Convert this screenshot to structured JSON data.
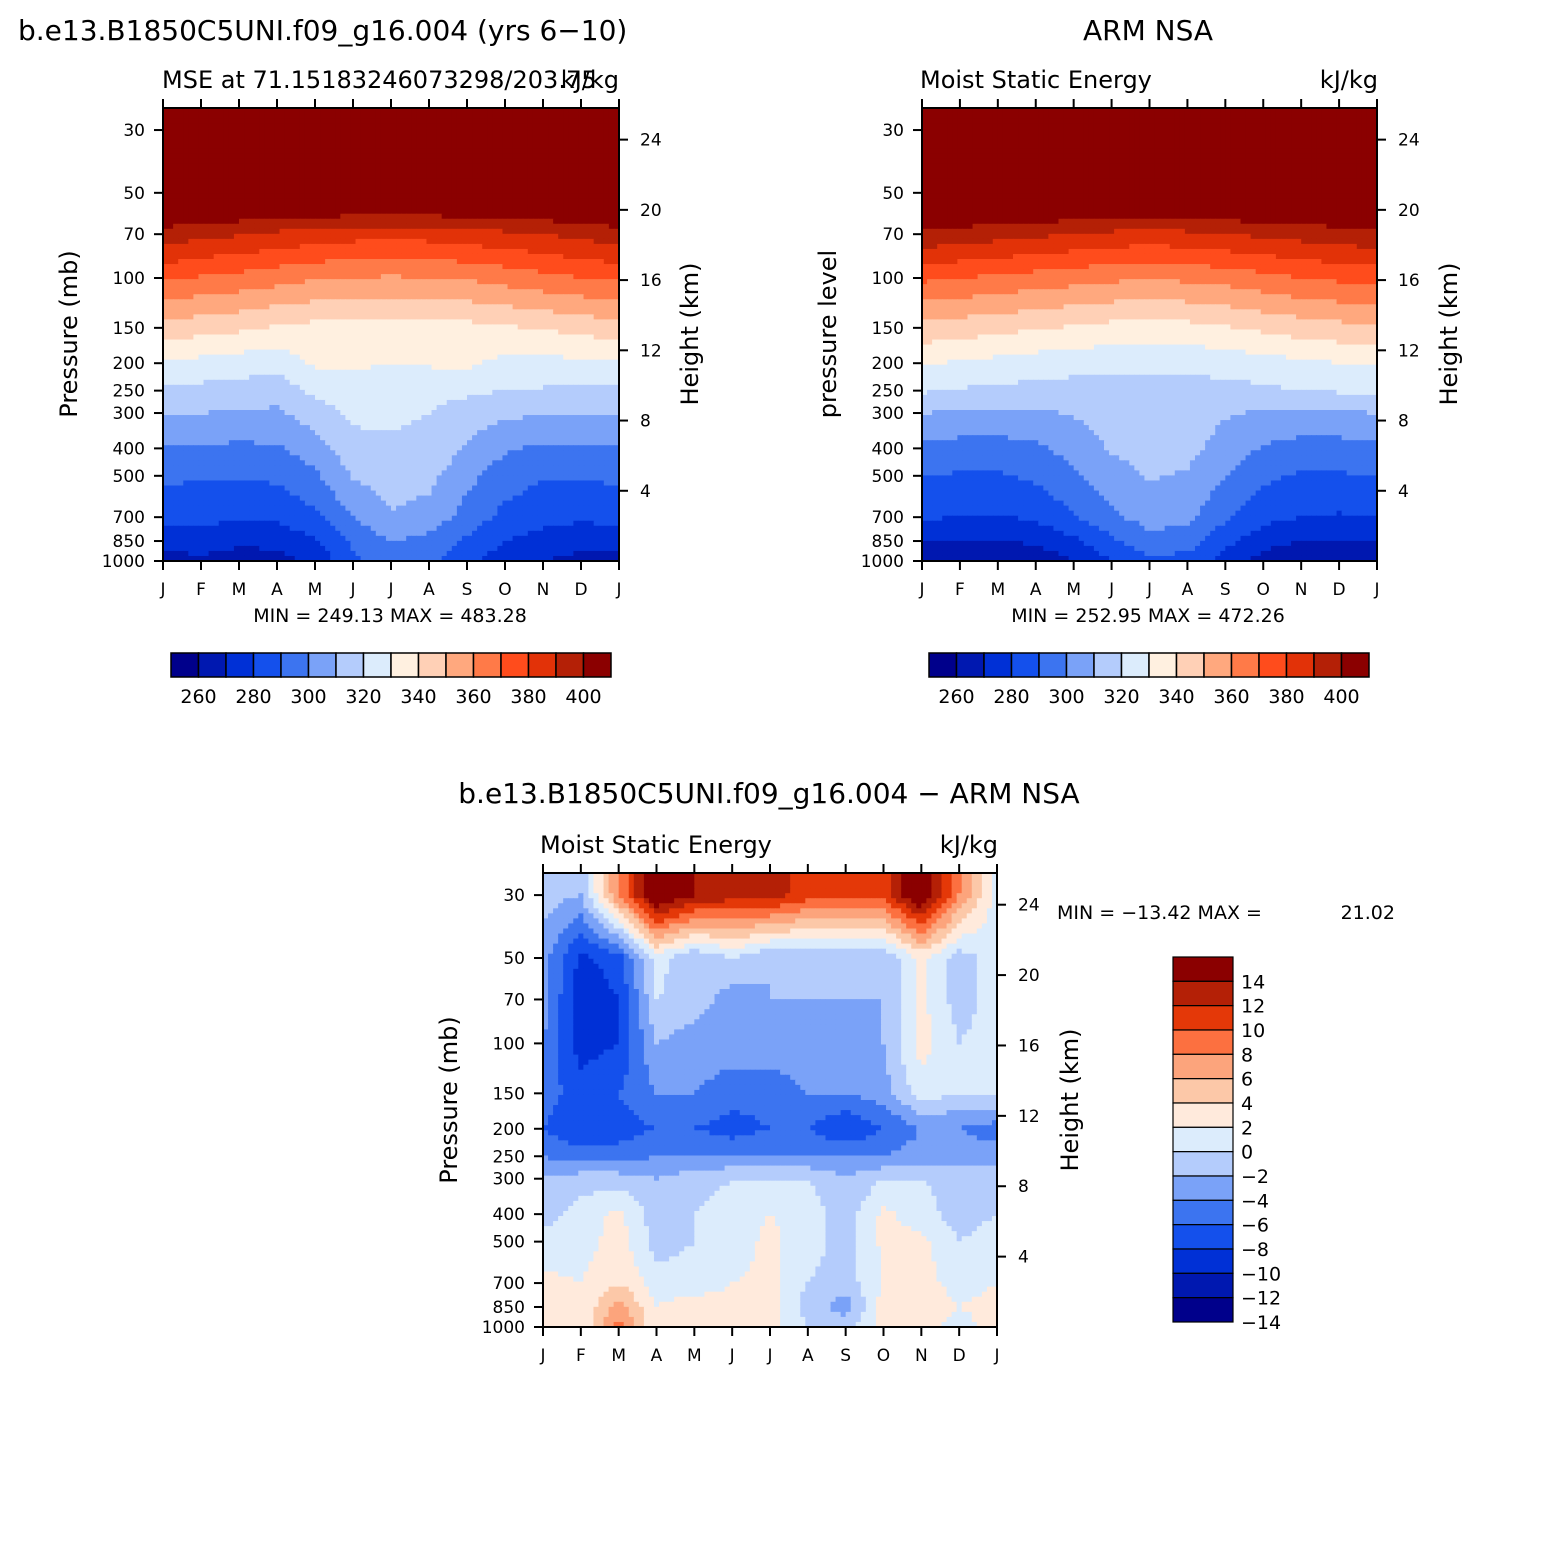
{
  "palette": {
    "mse": [
      "#00008b",
      "#0018b0",
      "#0030d6",
      "#1450ec",
      "#3c74f0",
      "#7aa2f8",
      "#b4ccfc",
      "#dcecfc",
      "#fff0e0",
      "#ffd0b6",
      "#ffa87e",
      "#ff7a48",
      "#ff4c1c",
      "#e23208",
      "#b42006",
      "#8b0000"
    ],
    "diff": [
      "#00008b",
      "#0018b0",
      "#0030d6",
      "#1450ec",
      "#3c74f0",
      "#7aa2f8",
      "#b4ccfc",
      "#dcecfc",
      "#ffeadc",
      "#fcc8a8",
      "#fca47c",
      "#fc7040",
      "#e43808",
      "#b42006",
      "#8b0000"
    ]
  },
  "months": [
    "J",
    "F",
    "M",
    "A",
    "M",
    "J",
    "J",
    "A",
    "S",
    "O",
    "N",
    "D",
    "J"
  ],
  "pressure_ticks": [
    "30",
    "50",
    "70",
    "100",
    "150",
    "200",
    "250",
    "300",
    "400",
    "500",
    "700",
    "850",
    "1000"
  ],
  "height_ticks": [
    "24",
    "20",
    "16",
    "12",
    "8",
    "4"
  ],
  "colorbar_mse": {
    "labels": [
      "260",
      "280",
      "300",
      "320",
      "340",
      "360",
      "380",
      "400"
    ]
  },
  "colorbar_diff": {
    "labels": [
      "14",
      "12",
      "10",
      "8",
      "6",
      "4",
      "2",
      "0",
      "−2",
      "−4",
      "−6",
      "−8",
      "−10",
      "−12",
      "−14"
    ]
  },
  "chart_data": [
    {
      "type": "heatmap",
      "id": "model",
      "title": "b.e13.B1850C5UNI.f09_g16.004 (yrs 6−10)",
      "subtitle_left": "MSE at 71.15183246073298/203.75",
      "subtitle_right": "kJ/kg",
      "ylabel": "Pressure (mb)",
      "ylabel_right": "Height (km)",
      "xlabel": "",
      "stats": "MIN = 249.13 MAX = 483.28",
      "units": "kJ/kg",
      "levels": [
        260,
        270,
        280,
        290,
        300,
        310,
        320,
        330,
        340,
        350,
        360,
        370,
        380,
        390,
        400
      ],
      "x_months": [
        0,
        1,
        2,
        3,
        4,
        5,
        6,
        7,
        8,
        9,
        10,
        11,
        12
      ],
      "pressure_levels_mb": [
        30,
        50,
        70,
        100,
        150,
        200,
        250,
        300,
        400,
        500,
        700,
        850,
        1000
      ],
      "values": [
        [
          420,
          420,
          420,
          420,
          420,
          420,
          420,
          420,
          420,
          420,
          420,
          420,
          420
        ],
        [
          420,
          420,
          420,
          420,
          420,
          420,
          420,
          420,
          420,
          420,
          420,
          420,
          420
        ],
        [
          396,
          393,
          391,
          388,
          386,
          384,
          383,
          384,
          386,
          388,
          390,
          393,
          396
        ],
        [
          372,
          369,
          367,
          364,
          361,
          360,
          359,
          360,
          361,
          364,
          367,
          370,
          372
        ],
        [
          346,
          344,
          342,
          339,
          337,
          336,
          335,
          336,
          337,
          339,
          341,
          343,
          346
        ],
        [
          329,
          327,
          325,
          323,
          332,
          331,
          330,
          331,
          332,
          327,
          327,
          328,
          329
        ],
        [
          318,
          317,
          316,
          315,
          322,
          327,
          326,
          324,
          322,
          320,
          319,
          318,
          318
        ],
        [
          311,
          310,
          309,
          308,
          315,
          322,
          322,
          320,
          315,
          312,
          311,
          311,
          311
        ],
        [
          298,
          299,
          298,
          299,
          305,
          317,
          318,
          317,
          309,
          301,
          298,
          298,
          298
        ],
        [
          292,
          291,
          291,
          292,
          298,
          311,
          315,
          313,
          303,
          295,
          291,
          291,
          292
        ],
        [
          283,
          283,
          281,
          282,
          288,
          300,
          309,
          306,
          296,
          287,
          283,
          282,
          283
        ],
        [
          274,
          275,
          272,
          273,
          278,
          292,
          300,
          297,
          288,
          280,
          276,
          273,
          274
        ],
        [
          266,
          268,
          265,
          266,
          272,
          288,
          295,
          293,
          283,
          274,
          270,
          267,
          266
        ]
      ]
    },
    {
      "type": "heatmap",
      "id": "obs",
      "title": "ARM NSA",
      "subtitle_left": "Moist Static Energy",
      "subtitle_right": "kJ/kg",
      "ylabel": "pressure level",
      "ylabel_right": "Height (km)",
      "xlabel": "",
      "stats": "MIN = 252.95 MAX = 472.26",
      "units": "kJ/kg",
      "levels": [
        260,
        270,
        280,
        290,
        300,
        310,
        320,
        330,
        340,
        350,
        360,
        370,
        380,
        390,
        400
      ],
      "x_months": [
        0,
        1,
        2,
        3,
        4,
        5,
        6,
        7,
        8,
        9,
        10,
        11,
        12
      ],
      "pressure_levels_mb": [
        30,
        50,
        70,
        100,
        150,
        200,
        250,
        300,
        400,
        500,
        700,
        850,
        1000
      ],
      "values": [
        [
          420,
          420,
          420,
          420,
          420,
          420,
          420,
          420,
          420,
          420,
          420,
          420,
          420
        ],
        [
          420,
          420,
          420,
          420,
          420,
          420,
          420,
          420,
          420,
          420,
          420,
          420,
          420
        ],
        [
          398,
          396,
          394,
          392,
          390,
          388,
          386,
          388,
          390,
          392,
          394,
          396,
          398
        ],
        [
          372,
          370,
          368,
          366,
          364,
          362,
          361,
          362,
          364,
          367,
          370,
          372,
          373
        ],
        [
          347,
          345,
          343,
          341,
          339,
          337,
          336,
          337,
          339,
          342,
          345,
          347,
          348
        ],
        [
          331,
          329,
          327,
          325,
          324,
          323,
          322,
          323,
          324,
          326,
          328,
          330,
          331
        ],
        [
          321,
          319,
          318,
          317,
          316,
          316,
          316,
          316,
          317,
          318,
          320,
          321,
          322
        ],
        [
          310,
          309,
          308,
          308,
          311,
          314,
          316,
          315,
          311,
          309,
          308,
          309,
          310
        ],
        [
          297,
          296,
          296,
          298,
          304,
          311,
          314,
          313,
          306,
          299,
          296,
          296,
          297
        ],
        [
          290,
          289,
          289,
          292,
          298,
          306,
          311,
          309,
          300,
          292,
          289,
          289,
          290
        ],
        [
          281,
          280,
          279,
          282,
          289,
          298,
          304,
          302,
          292,
          283,
          280,
          279,
          280
        ],
        [
          271,
          270,
          269,
          272,
          278,
          288,
          297,
          295,
          283,
          274,
          270,
          269,
          270
        ],
        [
          262,
          261,
          260,
          263,
          270,
          280,
          288,
          286,
          276,
          266,
          262,
          261,
          262
        ]
      ]
    },
    {
      "type": "heatmap",
      "id": "diff",
      "title": "b.e13.B1850C5UNI.f09_g16.004 − ARM NSA",
      "subtitle_left": "Moist Static Energy",
      "subtitle_right": "kJ/kg",
      "ylabel": "Pressure (mb)",
      "ylabel_right": "Height (km)",
      "xlabel": "",
      "stats_left": "MIN = −13.42 MAX =",
      "stats_right": "21.02",
      "units": "kJ/kg",
      "levels": [
        -14,
        -12,
        -10,
        -8,
        -6,
        -4,
        -2,
        0,
        2,
        4,
        6,
        8,
        10,
        12,
        14
      ],
      "x_months": [
        0,
        1,
        2,
        3,
        4,
        5,
        6,
        7,
        8,
        9,
        10,
        11,
        12
      ],
      "pressure_levels_mb": [
        30,
        50,
        70,
        100,
        150,
        200,
        250,
        300,
        400,
        500,
        700,
        850,
        1000
      ],
      "values": [
        [
          -3,
          -4,
          6,
          15,
          12,
          11,
          11,
          9,
          9,
          9,
          15,
          6,
          -1
        ],
        [
          -5,
          -10.5,
          -9,
          -1,
          -4,
          -2,
          -4,
          -4,
          -4,
          -4,
          0.5,
          -3,
          -1
        ],
        [
          -5,
          -11.5,
          -10,
          -2,
          -3,
          -5,
          -4,
          -4,
          -4,
          -4,
          0.5,
          -3,
          -1
        ],
        [
          -6,
          -11,
          -10,
          -4,
          -5,
          -5,
          -5,
          -5,
          -5,
          -4,
          1,
          -2,
          -1
        ],
        [
          -7,
          -9,
          -8,
          -6,
          -6,
          -7,
          -7,
          -6,
          -6,
          -5,
          -1,
          -2,
          -2
        ],
        [
          -8,
          -10,
          -9,
          -8,
          -8,
          -9,
          -8,
          -8,
          -10,
          -8,
          -6,
          -6,
          -7
        ],
        [
          -6,
          -7,
          -7,
          -6,
          -6,
          -6,
          -6,
          -6,
          -6,
          -6,
          -5,
          -5,
          -5
        ],
        [
          -4,
          -3,
          -3,
          -4,
          -3,
          -2,
          -2,
          -2,
          -4,
          -2,
          -2,
          -3,
          -3
        ],
        [
          -3,
          -1,
          0.5,
          -3,
          -2,
          -1,
          0,
          -1,
          -3,
          0.5,
          -1,
          -3,
          -2
        ],
        [
          -1,
          -1,
          1,
          -3,
          -2,
          -1,
          0.5,
          -1,
          -3,
          0.5,
          0.5,
          -2,
          -1
        ],
        [
          0.5,
          0,
          2,
          -1,
          -1,
          0,
          0.5,
          -2,
          -3,
          0,
          1,
          -1,
          0
        ],
        [
          1,
          0,
          5,
          0,
          1,
          0.5,
          1,
          -3,
          -5,
          1,
          2,
          0,
          1
        ],
        [
          0.5,
          0,
          7,
          0,
          0.5,
          0,
          0.5,
          -2,
          -3,
          0.5,
          1,
          -1,
          1
        ]
      ]
    }
  ]
}
